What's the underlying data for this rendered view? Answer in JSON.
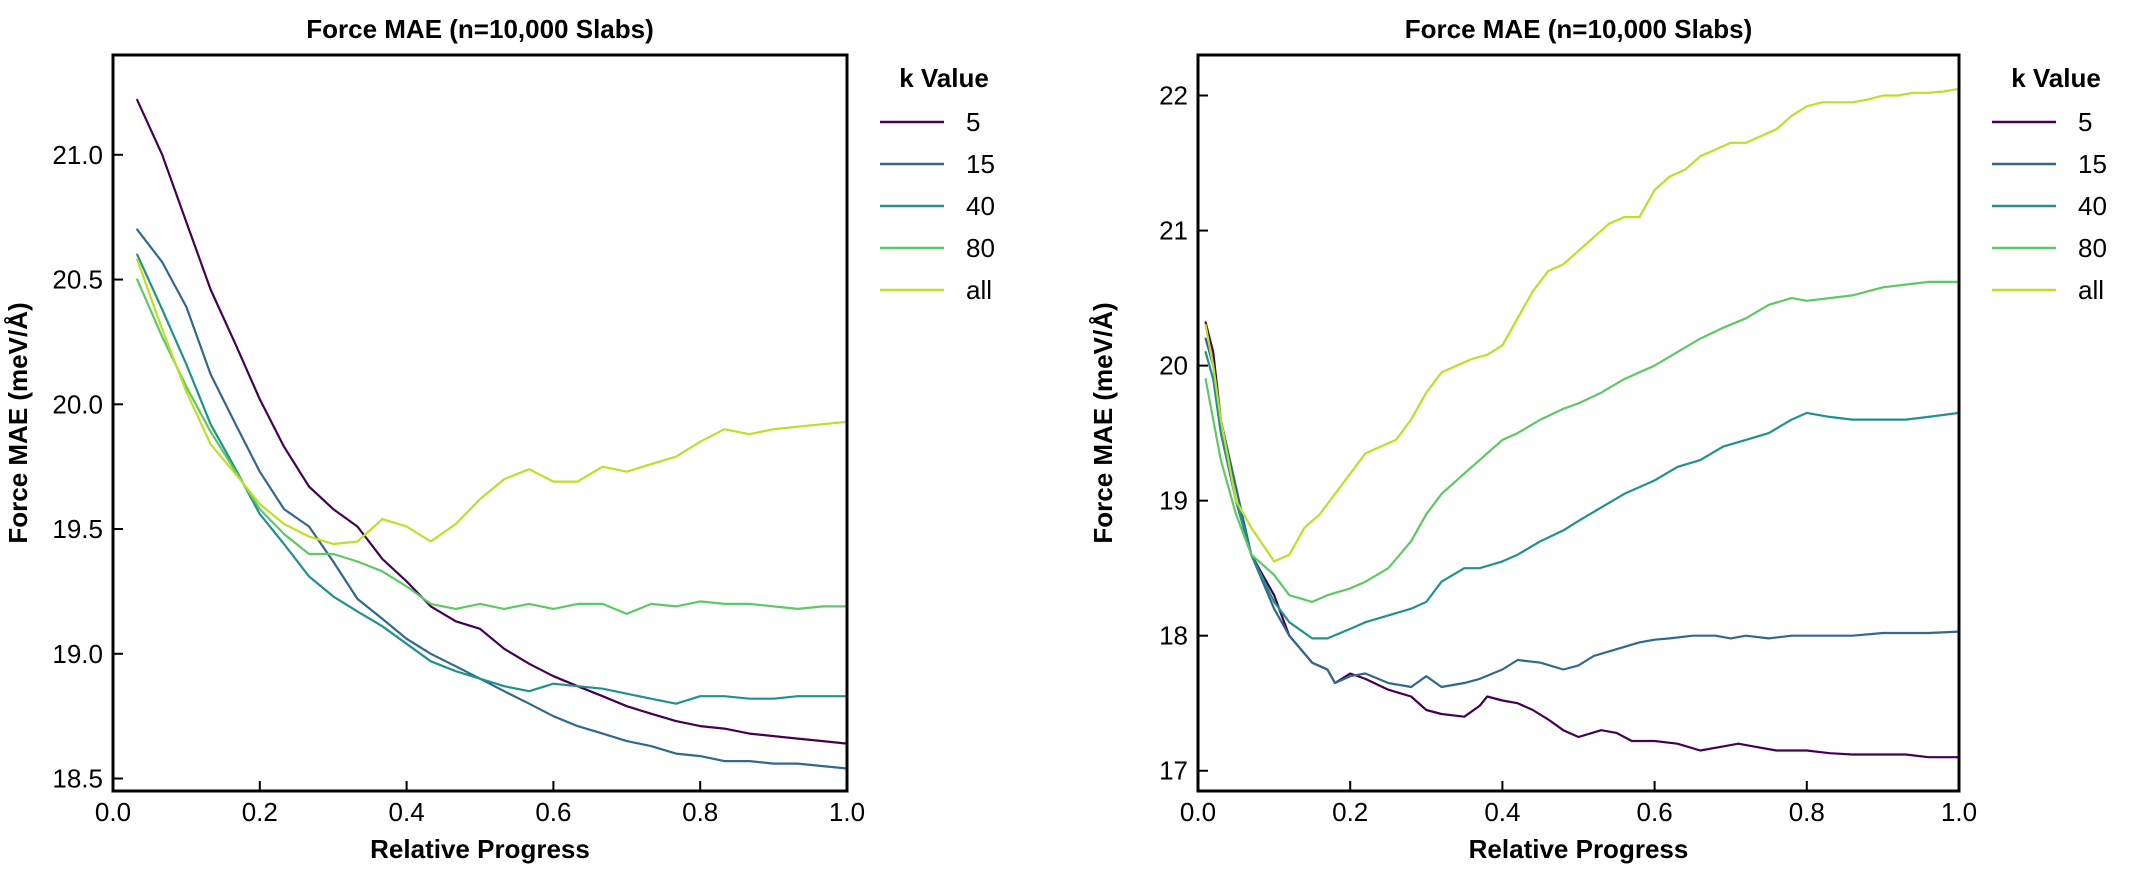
{
  "chart_data": [
    {
      "type": "line",
      "title": "Force MAE (n=10,000 Slabs)",
      "xlabel": "Relative Progress",
      "ylabel": "Force MAE (meV/Å)",
      "xlim": [
        0.0,
        1.0
      ],
      "ylim": [
        18.45,
        21.4
      ],
      "xticks": [
        0.0,
        0.2,
        0.4,
        0.6,
        0.8,
        1.0
      ],
      "xtick_labels": [
        "0.0",
        "0.2",
        "0.4",
        "0.6",
        "0.8",
        "1.0"
      ],
      "yticks": [
        18.5,
        19.0,
        19.5,
        20.0,
        20.5,
        21.0
      ],
      "ytick_labels": [
        "18.5",
        "19.0",
        "19.5",
        "20.0",
        "20.5",
        "21.0"
      ],
      "legend_title": "k Value",
      "legend_position": "outside-right",
      "series": [
        {
          "name": "5",
          "color": "#440154",
          "x": [
            0.033,
            0.067,
            0.1,
            0.133,
            0.167,
            0.2,
            0.233,
            0.267,
            0.3,
            0.333,
            0.367,
            0.4,
            0.433,
            0.467,
            0.5,
            0.533,
            0.567,
            0.6,
            0.633,
            0.667,
            0.7,
            0.733,
            0.767,
            0.8,
            0.833,
            0.867,
            0.9,
            0.933,
            0.967,
            1.0
          ],
          "y": [
            21.22,
            21.0,
            20.73,
            20.46,
            20.24,
            20.02,
            19.83,
            19.67,
            19.58,
            19.51,
            19.38,
            19.29,
            19.19,
            19.13,
            19.1,
            19.02,
            18.96,
            18.91,
            18.87,
            18.83,
            18.79,
            18.76,
            18.73,
            18.71,
            18.7,
            18.68,
            18.67,
            18.66,
            18.65,
            18.64
          ]
        },
        {
          "name": "15",
          "color": "#31688e",
          "x": [
            0.033,
            0.067,
            0.1,
            0.133,
            0.167,
            0.2,
            0.233,
            0.267,
            0.3,
            0.333,
            0.367,
            0.4,
            0.433,
            0.467,
            0.5,
            0.533,
            0.567,
            0.6,
            0.633,
            0.667,
            0.7,
            0.733,
            0.767,
            0.8,
            0.833,
            0.867,
            0.9,
            0.933,
            0.967,
            1.0
          ],
          "y": [
            20.7,
            20.57,
            20.39,
            20.12,
            19.92,
            19.73,
            19.58,
            19.51,
            19.37,
            19.22,
            19.14,
            19.06,
            19.0,
            18.95,
            18.9,
            18.85,
            18.8,
            18.75,
            18.71,
            18.68,
            18.65,
            18.63,
            18.6,
            18.59,
            18.57,
            18.57,
            18.56,
            18.56,
            18.55,
            18.54
          ]
        },
        {
          "name": "40",
          "color": "#21918c",
          "x": [
            0.033,
            0.067,
            0.1,
            0.133,
            0.167,
            0.2,
            0.233,
            0.267,
            0.3,
            0.333,
            0.367,
            0.4,
            0.433,
            0.467,
            0.5,
            0.533,
            0.567,
            0.6,
            0.633,
            0.667,
            0.7,
            0.733,
            0.767,
            0.8,
            0.833,
            0.867,
            0.9,
            0.933,
            0.967,
            1.0
          ],
          "y": [
            20.6,
            20.38,
            20.16,
            19.92,
            19.74,
            19.56,
            19.44,
            19.31,
            19.23,
            19.17,
            19.11,
            19.04,
            18.97,
            18.93,
            18.9,
            18.87,
            18.85,
            18.88,
            18.87,
            18.86,
            18.84,
            18.82,
            18.8,
            18.83,
            18.83,
            18.82,
            18.82,
            18.83,
            18.83,
            18.83
          ]
        },
        {
          "name": "80",
          "color": "#5ec962",
          "x": [
            0.033,
            0.067,
            0.1,
            0.133,
            0.167,
            0.2,
            0.233,
            0.267,
            0.3,
            0.333,
            0.367,
            0.4,
            0.433,
            0.467,
            0.5,
            0.533,
            0.567,
            0.6,
            0.633,
            0.667,
            0.7,
            0.733,
            0.767,
            0.8,
            0.833,
            0.867,
            0.9,
            0.933,
            0.967,
            1.0
          ],
          "y": [
            20.5,
            20.27,
            20.07,
            19.89,
            19.73,
            19.58,
            19.48,
            19.4,
            19.4,
            19.37,
            19.33,
            19.27,
            19.2,
            19.18,
            19.2,
            19.18,
            19.2,
            19.18,
            19.2,
            19.2,
            19.16,
            19.2,
            19.19,
            19.21,
            19.2,
            19.2,
            19.19,
            19.18,
            19.19,
            19.19
          ]
        },
        {
          "name": "all",
          "color": "#bddf26",
          "x": [
            0.033,
            0.067,
            0.1,
            0.133,
            0.167,
            0.2,
            0.233,
            0.267,
            0.3,
            0.333,
            0.367,
            0.4,
            0.433,
            0.467,
            0.5,
            0.533,
            0.567,
            0.6,
            0.633,
            0.667,
            0.7,
            0.733,
            0.767,
            0.8,
            0.833,
            0.867,
            0.9,
            0.933,
            0.967,
            1.0
          ],
          "y": [
            20.58,
            20.3,
            20.05,
            19.84,
            19.72,
            19.6,
            19.52,
            19.47,
            19.44,
            19.45,
            19.54,
            19.51,
            19.45,
            19.52,
            19.62,
            19.7,
            19.74,
            19.69,
            19.69,
            19.75,
            19.73,
            19.76,
            19.79,
            19.85,
            19.9,
            19.88,
            19.9,
            19.91,
            19.92,
            19.93
          ]
        }
      ]
    },
    {
      "type": "line",
      "title": "Force MAE (n=10,000 Slabs)",
      "xlabel": "Relative Progress",
      "ylabel": "Force MAE (meV/Å)",
      "xlim": [
        0.0,
        1.0
      ],
      "ylim": [
        16.85,
        22.3
      ],
      "xticks": [
        0.0,
        0.2,
        0.4,
        0.6,
        0.8,
        1.0
      ],
      "xtick_labels": [
        "0.0",
        "0.2",
        "0.4",
        "0.6",
        "0.8",
        "1.0"
      ],
      "yticks": [
        17,
        18,
        19,
        20,
        21,
        22
      ],
      "ytick_labels": [
        "17",
        "18",
        "19",
        "20",
        "21",
        "22"
      ],
      "legend_title": "k Value",
      "legend_position": "outside-right",
      "series": [
        {
          "name": "5",
          "color": "#440154",
          "x": [
            0.01,
            0.02,
            0.03,
            0.05,
            0.07,
            0.1,
            0.12,
            0.15,
            0.17,
            0.18,
            0.2,
            0.22,
            0.25,
            0.28,
            0.3,
            0.32,
            0.35,
            0.37,
            0.38,
            0.4,
            0.42,
            0.44,
            0.46,
            0.48,
            0.5,
            0.53,
            0.55,
            0.57,
            0.6,
            0.63,
            0.66,
            0.69,
            0.71,
            0.73,
            0.76,
            0.8,
            0.83,
            0.86,
            0.9,
            0.93,
            0.96,
            1.0
          ],
          "y": [
            20.32,
            20.1,
            19.6,
            19.0,
            18.6,
            18.3,
            18.0,
            17.8,
            17.75,
            17.65,
            17.72,
            17.68,
            17.6,
            17.55,
            17.45,
            17.42,
            17.4,
            17.48,
            17.55,
            17.52,
            17.5,
            17.45,
            17.38,
            17.3,
            17.25,
            17.3,
            17.28,
            17.22,
            17.22,
            17.2,
            17.15,
            17.18,
            17.2,
            17.18,
            17.15,
            17.15,
            17.13,
            17.12,
            17.12,
            17.12,
            17.1,
            17.1
          ]
        },
        {
          "name": "15",
          "color": "#31688e",
          "x": [
            0.01,
            0.02,
            0.03,
            0.05,
            0.07,
            0.1,
            0.12,
            0.15,
            0.17,
            0.18,
            0.2,
            0.22,
            0.25,
            0.28,
            0.3,
            0.32,
            0.35,
            0.37,
            0.4,
            0.42,
            0.45,
            0.48,
            0.5,
            0.52,
            0.55,
            0.58,
            0.6,
            0.62,
            0.65,
            0.68,
            0.7,
            0.72,
            0.75,
            0.78,
            0.8,
            0.83,
            0.86,
            0.9,
            0.93,
            0.96,
            1.0
          ],
          "y": [
            20.2,
            20.0,
            19.6,
            19.1,
            18.6,
            18.2,
            18.0,
            17.8,
            17.75,
            17.65,
            17.7,
            17.72,
            17.65,
            17.62,
            17.7,
            17.62,
            17.65,
            17.68,
            17.75,
            17.82,
            17.8,
            17.75,
            17.78,
            17.85,
            17.9,
            17.95,
            17.97,
            17.98,
            18.0,
            18.0,
            17.98,
            18.0,
            17.98,
            18.0,
            18.0,
            18.0,
            18.0,
            18.02,
            18.02,
            18.02,
            18.03
          ]
        },
        {
          "name": "40",
          "color": "#21918c",
          "x": [
            0.01,
            0.02,
            0.03,
            0.05,
            0.07,
            0.1,
            0.12,
            0.15,
            0.17,
            0.2,
            0.22,
            0.25,
            0.28,
            0.3,
            0.32,
            0.35,
            0.37,
            0.4,
            0.42,
            0.45,
            0.48,
            0.5,
            0.53,
            0.56,
            0.6,
            0.63,
            0.66,
            0.69,
            0.72,
            0.75,
            0.78,
            0.8,
            0.83,
            0.86,
            0.9,
            0.93,
            0.96,
            1.0
          ],
          "y": [
            20.1,
            19.9,
            19.5,
            19.0,
            18.6,
            18.25,
            18.1,
            17.98,
            17.98,
            18.05,
            18.1,
            18.15,
            18.2,
            18.25,
            18.4,
            18.5,
            18.5,
            18.55,
            18.6,
            18.7,
            18.78,
            18.85,
            18.95,
            19.05,
            19.15,
            19.25,
            19.3,
            19.4,
            19.45,
            19.5,
            19.6,
            19.65,
            19.62,
            19.6,
            19.6,
            19.6,
            19.62,
            19.65
          ]
        },
        {
          "name": "80",
          "color": "#5ec962",
          "x": [
            0.01,
            0.02,
            0.03,
            0.05,
            0.07,
            0.1,
            0.12,
            0.15,
            0.17,
            0.2,
            0.22,
            0.25,
            0.28,
            0.3,
            0.32,
            0.35,
            0.37,
            0.4,
            0.42,
            0.45,
            0.48,
            0.5,
            0.53,
            0.56,
            0.6,
            0.63,
            0.66,
            0.69,
            0.72,
            0.75,
            0.78,
            0.8,
            0.83,
            0.86,
            0.9,
            0.93,
            0.96,
            1.0
          ],
          "y": [
            19.9,
            19.6,
            19.3,
            18.9,
            18.6,
            18.45,
            18.3,
            18.25,
            18.3,
            18.35,
            18.4,
            18.5,
            18.7,
            18.9,
            19.05,
            19.2,
            19.3,
            19.45,
            19.5,
            19.6,
            19.68,
            19.72,
            19.8,
            19.9,
            20.0,
            20.1,
            20.2,
            20.28,
            20.35,
            20.45,
            20.5,
            20.48,
            20.5,
            20.52,
            20.58,
            20.6,
            20.62,
            20.62
          ]
        },
        {
          "name": "all",
          "color": "#bddf26",
          "x": [
            0.01,
            0.02,
            0.03,
            0.05,
            0.07,
            0.1,
            0.12,
            0.14,
            0.16,
            0.18,
            0.2,
            0.22,
            0.24,
            0.26,
            0.28,
            0.3,
            0.32,
            0.34,
            0.36,
            0.38,
            0.4,
            0.42,
            0.44,
            0.46,
            0.48,
            0.5,
            0.52,
            0.54,
            0.56,
            0.58,
            0.6,
            0.62,
            0.64,
            0.66,
            0.68,
            0.7,
            0.72,
            0.74,
            0.76,
            0.78,
            0.8,
            0.82,
            0.84,
            0.86,
            0.88,
            0.9,
            0.92,
            0.94,
            0.96,
            0.98,
            1.0
          ],
          "y": [
            20.3,
            20.0,
            19.6,
            19.0,
            18.8,
            18.55,
            18.6,
            18.8,
            18.9,
            19.05,
            19.2,
            19.35,
            19.4,
            19.45,
            19.6,
            19.8,
            19.95,
            20.0,
            20.05,
            20.08,
            20.15,
            20.35,
            20.55,
            20.7,
            20.75,
            20.85,
            20.95,
            21.05,
            21.1,
            21.1,
            21.3,
            21.4,
            21.45,
            21.55,
            21.6,
            21.65,
            21.65,
            21.7,
            21.75,
            21.85,
            21.92,
            21.95,
            21.95,
            21.95,
            21.97,
            22.0,
            22.0,
            22.02,
            22.02,
            22.03,
            22.05
          ]
        }
      ]
    }
  ]
}
